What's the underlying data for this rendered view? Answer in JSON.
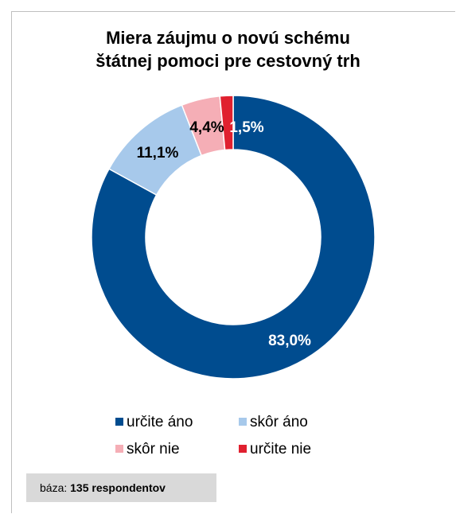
{
  "chart_data": {
    "type": "pie",
    "title_lines": [
      "Miera záujmu o novú schému",
      "štátnej pomoci pre cestovný trh"
    ],
    "categories": [
      "určite áno",
      "skôr áno",
      "skôr nie",
      "určite nie"
    ],
    "values": [
      83.0,
      11.1,
      4.4,
      1.5
    ],
    "data_labels": [
      "83,0%",
      "11,1%",
      "4,4%",
      "1,5%"
    ],
    "colors": [
      "#004C8F",
      "#A7C9EB",
      "#F5AEB6",
      "#E0202F"
    ],
    "label_colors": [
      "#ffffff",
      "#000000",
      "#000000",
      "#ffffff"
    ],
    "donut": true,
    "legend": "bottom"
  },
  "legend": [
    {
      "label": "určite áno",
      "color": "#004C8F"
    },
    {
      "label": "skôr áno",
      "color": "#A7C9EB"
    },
    {
      "label": "skôr nie",
      "color": "#F5AEB6"
    },
    {
      "label": "určite nie",
      "color": "#E0202F"
    }
  ],
  "footer": {
    "base_label": "báza:",
    "base_value": "135 respondentov"
  }
}
